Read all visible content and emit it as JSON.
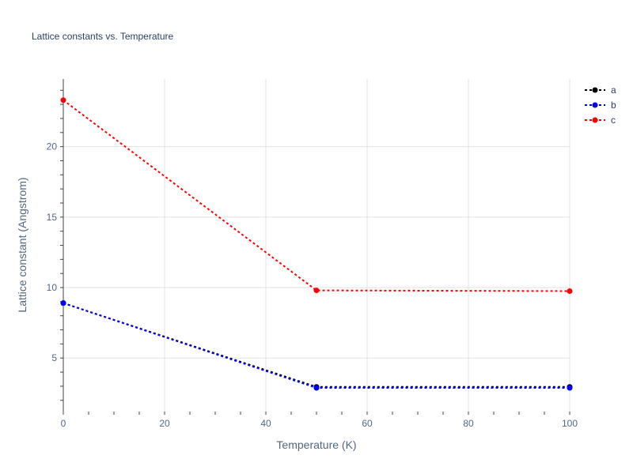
{
  "chart_data": {
    "type": "line",
    "title": "Lattice constants vs. Temperature",
    "xlabel": "Temperature (K)",
    "ylabel": "Lattice constant (Angstrom)",
    "xlim": [
      0,
      100
    ],
    "ylim": [
      1.2,
      24.8
    ],
    "x_ticks": [
      0,
      20,
      40,
      60,
      80,
      100
    ],
    "y_ticks": [
      5,
      10,
      15,
      20
    ],
    "grid": true,
    "legend_position": "top-right",
    "series": [
      {
        "name": "a",
        "color": "#000000",
        "x": [
          0,
          50,
          100
        ],
        "y": [
          8.9,
          2.95,
          2.95
        ]
      },
      {
        "name": "b",
        "color": "#0000ff",
        "x": [
          0,
          50,
          100
        ],
        "y": [
          8.9,
          2.88,
          2.88
        ]
      },
      {
        "name": "c",
        "color": "#ff0000",
        "x": [
          0,
          50,
          100
        ],
        "y": [
          23.3,
          9.8,
          9.75
        ]
      }
    ]
  }
}
